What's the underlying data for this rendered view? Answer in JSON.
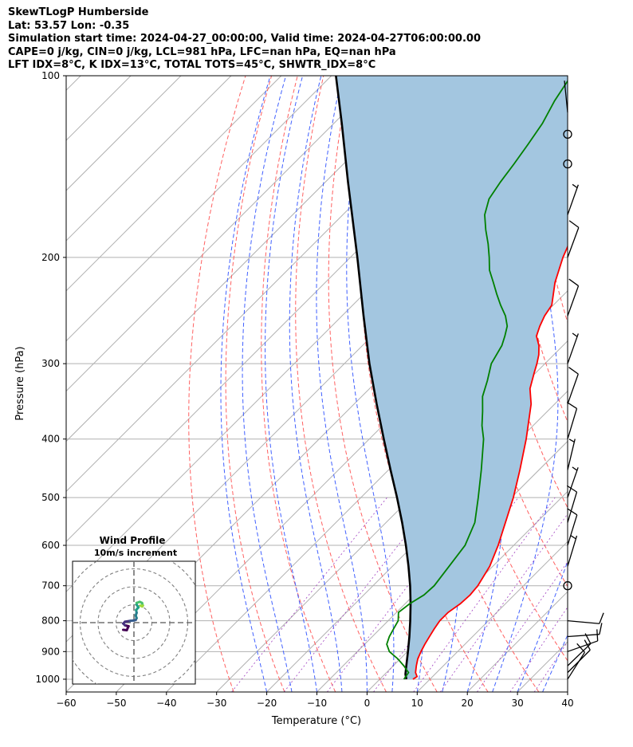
{
  "header": {
    "line1": "SkewTLogP Humberside",
    "line2": "Lat: 53.57   Lon: -0.35",
    "line3": "Simulation start time: 2024-04-27_00:00:00, Valid time: 2024-04-27T06:00:00.00",
    "line4": "CAPE=0 j/kg, CIN=0 j/kg, LCL=981 hPa, LFC=nan hPa, EQ=nan hPa",
    "line5": "LFT IDX=8°C, K IDX=13°C, TOTAL TOTS=45°C, SHWTR_IDX=8°C"
  },
  "chart_data": {
    "type": "line",
    "xlabel": "Temperature (°C)",
    "ylabel": "Pressure (hPa)",
    "xlim": [
      -60,
      40
    ],
    "ylim": [
      1050,
      100
    ],
    "y_scale": "log",
    "x_ticks": [
      -60,
      -50,
      -40,
      -30,
      -20,
      -10,
      0,
      10,
      20,
      30,
      40
    ],
    "y_ticks": [
      1000,
      900,
      800,
      700,
      600,
      500,
      400,
      300,
      200,
      100
    ],
    "skew": "45 degrees",
    "series": [
      {
        "kind": "temperature",
        "color": "#ff0000",
        "points": [
          [
            1000,
            6.6
          ],
          [
            990,
            6.9
          ],
          [
            975,
            5.8
          ],
          [
            950,
            4.6
          ],
          [
            925,
            3.5
          ],
          [
            900,
            2.7
          ],
          [
            875,
            2.0
          ],
          [
            850,
            1.4
          ],
          [
            825,
            0.8
          ],
          [
            800,
            0.3
          ],
          [
            775,
            0.3
          ],
          [
            750,
            1.0
          ],
          [
            725,
            1.2
          ],
          [
            700,
            0.9
          ],
          [
            650,
            -0.6
          ],
          [
            600,
            -3.1
          ],
          [
            550,
            -6.2
          ],
          [
            500,
            -9.6
          ],
          [
            450,
            -13.8
          ],
          [
            400,
            -18.7
          ],
          [
            350,
            -24.7
          ],
          [
            330,
            -28.0
          ],
          [
            310,
            -30.4
          ],
          [
            300,
            -31.6
          ],
          [
            290,
            -33.0
          ],
          [
            280,
            -34.8
          ],
          [
            270,
            -37.2
          ],
          [
            260,
            -38.5
          ],
          [
            250,
            -39.6
          ],
          [
            240,
            -40.3
          ],
          [
            220,
            -44.2
          ],
          [
            200,
            -47.6
          ],
          [
            180,
            -50.7
          ],
          [
            160,
            -53.2
          ],
          [
            140,
            -55.0
          ],
          [
            120,
            -57.4
          ],
          [
            100,
            -60.7
          ]
        ]
      },
      {
        "kind": "dewpoint",
        "color": "#008000",
        "points": [
          [
            1000,
            4.8
          ],
          [
            975,
            4.4
          ],
          [
            950,
            2.1
          ],
          [
            925,
            -0.5
          ],
          [
            900,
            -3.6
          ],
          [
            875,
            -5.6
          ],
          [
            850,
            -6.6
          ],
          [
            825,
            -7.3
          ],
          [
            800,
            -8.0
          ],
          [
            775,
            -9.6
          ],
          [
            750,
            -9.1
          ],
          [
            725,
            -8.0
          ],
          [
            700,
            -7.8
          ],
          [
            650,
            -8.7
          ],
          [
            600,
            -9.7
          ],
          [
            550,
            -12.3
          ],
          [
            500,
            -16.6
          ],
          [
            450,
            -21.5
          ],
          [
            400,
            -27.2
          ],
          [
            380,
            -30.2
          ],
          [
            360,
            -32.9
          ],
          [
            340,
            -35.9
          ],
          [
            320,
            -38.1
          ],
          [
            300,
            -40.7
          ],
          [
            280,
            -42.2
          ],
          [
            270,
            -43.5
          ],
          [
            260,
            -45.0
          ],
          [
            250,
            -47.4
          ],
          [
            240,
            -50.5
          ],
          [
            230,
            -53.5
          ],
          [
            220,
            -56.5
          ],
          [
            210,
            -59.7
          ],
          [
            200,
            -62.3
          ],
          [
            190,
            -65.2
          ],
          [
            180,
            -68.5
          ],
          [
            170,
            -71.7
          ],
          [
            160,
            -74.0
          ],
          [
            150,
            -75.1
          ],
          [
            140,
            -76.0
          ],
          [
            130,
            -77.1
          ],
          [
            120,
            -78.4
          ],
          [
            110,
            -80.5
          ],
          [
            100,
            -82.2
          ]
        ]
      },
      {
        "kind": "parcel",
        "color": "#000000",
        "points": [
          [
            1000,
            5.3
          ],
          [
            981,
            4.1
          ],
          [
            950,
            2.6
          ],
          [
            900,
            0.1
          ],
          [
            850,
            -2.6
          ],
          [
            800,
            -5.6
          ],
          [
            750,
            -8.9
          ],
          [
            700,
            -12.6
          ],
          [
            650,
            -16.8
          ],
          [
            600,
            -21.5
          ],
          [
            550,
            -26.8
          ],
          [
            500,
            -32.8
          ],
          [
            450,
            -39.6
          ],
          [
            400,
            -47.1
          ],
          [
            350,
            -55.5
          ],
          [
            300,
            -65.0
          ],
          [
            250,
            -75.7
          ],
          [
            200,
            -88.6
          ],
          [
            150,
            -105.5
          ],
          [
            120,
            -118.4
          ],
          [
            100,
            -129.1
          ]
        ]
      }
    ],
    "wind_barbs": [
      {
        "p": 1000,
        "u": -3.8,
        "v": -6.0
      },
      {
        "p": 975,
        "u": -5.3,
        "v": -5.3
      },
      {
        "p": 950,
        "u": -4.8,
        "v": -4.6
      },
      {
        "p": 900,
        "u": -6.2,
        "v": -2.2
      },
      {
        "p": 850,
        "u": -7.0,
        "v": -0.5
      },
      {
        "p": 800,
        "u": -6.5,
        "v": 0.6
      },
      {
        "p": 700,
        "u": 0,
        "v": 0
      },
      {
        "p": 650,
        "u": -1.2,
        "v": -4.0
      },
      {
        "p": 600,
        "u": -2.0,
        "v": -6.5
      },
      {
        "p": 550,
        "u": -1.8,
        "v": -6.0
      },
      {
        "p": 500,
        "u": -1.6,
        "v": -4.6
      },
      {
        "p": 450,
        "u": -1.0,
        "v": -4.2
      },
      {
        "p": 400,
        "u": -1.5,
        "v": -5.0
      },
      {
        "p": 350,
        "u": -2.4,
        "v": -6.8
      },
      {
        "p": 300,
        "u": -1.7,
        "v": -4.8
      },
      {
        "p": 250,
        "u": -1.8,
        "v": -5.0
      },
      {
        "p": 200,
        "u": -2.4,
        "v": -6.5
      },
      {
        "p": 170,
        "u": -1.7,
        "v": -4.8
      },
      {
        "p": 140,
        "u": 0,
        "v": 0
      },
      {
        "p": 125,
        "u": 0,
        "v": 0
      },
      {
        "p": 115,
        "u": 0.2,
        "v": -2.0
      }
    ],
    "hodograph": {
      "title": "Wind Profile",
      "subtitle": "10m/s increment",
      "rings_ms": [
        10,
        20,
        30,
        40
      ],
      "points": [
        [
          -6,
          -4
        ],
        [
          -4,
          -4.2
        ],
        [
          -3,
          -2
        ],
        [
          -5,
          -1.5
        ],
        [
          -6,
          -0.5
        ],
        [
          -5,
          0.5
        ],
        [
          -2,
          1
        ],
        [
          0,
          1.2
        ],
        [
          1,
          1.5
        ],
        [
          1.5,
          2.5
        ],
        [
          1,
          4
        ],
        [
          1.5,
          5.5
        ],
        [
          1.2,
          7
        ],
        [
          2.5,
          8.5
        ],
        [
          1.5,
          10
        ],
        [
          1.5,
          11
        ],
        [
          3.2,
          11.6
        ],
        [
          4.5,
          11
        ],
        [
          5,
          9.5
        ],
        [
          4.6,
          9
        ],
        [
          3.6,
          9.5
        ]
      ],
      "colors": [
        "#440154",
        "#46327e",
        "#365c8d",
        "#277f8e",
        "#1fa187",
        "#4ac16d",
        "#a0da39"
      ]
    }
  }
}
